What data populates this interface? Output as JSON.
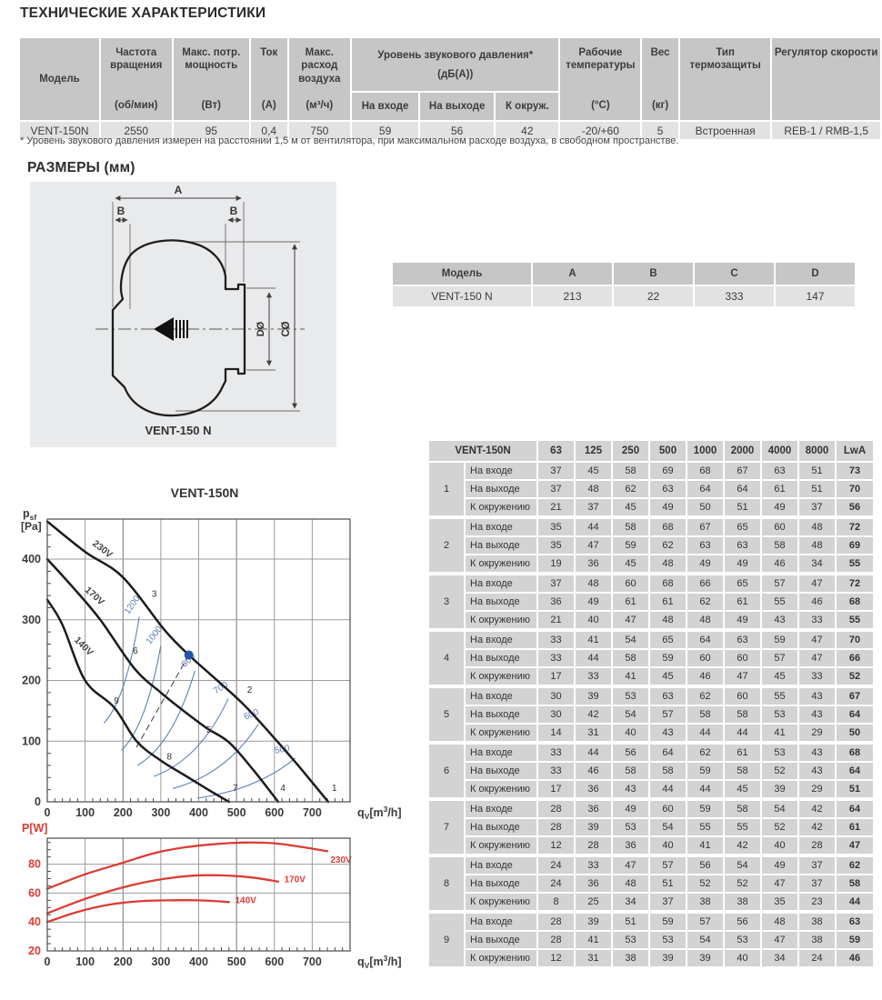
{
  "page": {
    "title": "ТЕХНИЧЕСКИЕ ХАРАКТЕРИСТИКИ",
    "dimensions_heading": "РАЗМЕРЫ (мм)",
    "footnote": "* Уровень звукового давления измерен на расстоянии 1,5 м от вентилятора, при максимальном расходе воздуха, в свободном пространстве."
  },
  "spec_table": {
    "columns_left": [
      {
        "label": "Модель",
        "unit": ""
      },
      {
        "label": "Частота вращения",
        "unit": "(об/мин)"
      },
      {
        "label": "Макс. потр. мощность",
        "unit": "(Вт)"
      },
      {
        "label": "Ток",
        "unit": "(А)"
      },
      {
        "label": "Макс. расход воздуха",
        "unit": "(м³/ч)"
      }
    ],
    "sound_group": {
      "line1": "Уровень звукового давления*",
      "line2": "(дБ(А))",
      "subcols": [
        "На входе",
        "На выходе",
        "К окруж."
      ]
    },
    "columns_right": [
      {
        "label": "Рабочие температуры",
        "unit": "(°C)"
      },
      {
        "label": "Вес",
        "unit": "(кг)"
      },
      {
        "label": "Тип термозащиты",
        "unit": ""
      },
      {
        "label": "Регулятор скорости",
        "unit": ""
      }
    ],
    "values": [
      "VENT-150N",
      "2550",
      "95",
      "0,4",
      "750",
      "59",
      "56",
      "42",
      "-20/+60",
      "5",
      "Встроенная",
      "REB-1 / RMB-1,5"
    ]
  },
  "dim_drawing": {
    "labels": {
      "A": "A",
      "B": "B",
      "D": "DØ",
      "C": "CØ"
    },
    "caption": "VENT-150 N"
  },
  "dim_table": {
    "headers": [
      "Модель",
      "A",
      "B",
      "C",
      "D"
    ],
    "row": [
      "VENT-150 N",
      "213",
      "22",
      "333",
      "147"
    ]
  },
  "sound_table": {
    "model": "VENT-150N",
    "freq_headers": [
      "63",
      "125",
      "250",
      "500",
      "1000",
      "2000",
      "4000",
      "8000",
      "LwA"
    ],
    "row_labels": [
      "На входе",
      "На выходе",
      "К окружению"
    ],
    "groups": [
      {
        "n": "1",
        "rows": [
          [
            37,
            45,
            58,
            69,
            68,
            67,
            63,
            51,
            73
          ],
          [
            37,
            48,
            62,
            63,
            64,
            64,
            61,
            51,
            70
          ],
          [
            21,
            37,
            45,
            49,
            50,
            51,
            49,
            37,
            56
          ]
        ]
      },
      {
        "n": "2",
        "rows": [
          [
            35,
            44,
            58,
            68,
            67,
            65,
            60,
            48,
            72
          ],
          [
            35,
            47,
            59,
            62,
            63,
            63,
            58,
            48,
            69
          ],
          [
            19,
            36,
            45,
            48,
            49,
            49,
            46,
            34,
            55
          ]
        ]
      },
      {
        "n": "3",
        "rows": [
          [
            37,
            48,
            60,
            68,
            66,
            65,
            57,
            47,
            72
          ],
          [
            36,
            49,
            61,
            61,
            62,
            61,
            55,
            46,
            68
          ],
          [
            21,
            40,
            47,
            48,
            48,
            49,
            43,
            33,
            55
          ]
        ]
      },
      {
        "n": "4",
        "rows": [
          [
            33,
            41,
            54,
            65,
            64,
            63,
            59,
            47,
            70
          ],
          [
            33,
            44,
            58,
            59,
            60,
            60,
            57,
            47,
            66
          ],
          [
            17,
            33,
            41,
            45,
            46,
            47,
            45,
            33,
            52
          ]
        ]
      },
      {
        "n": "5",
        "rows": [
          [
            30,
            39,
            53,
            63,
            62,
            60,
            55,
            43,
            67
          ],
          [
            30,
            42,
            54,
            57,
            58,
            58,
            53,
            43,
            64
          ],
          [
            14,
            31,
            40,
            43,
            44,
            44,
            41,
            29,
            50
          ]
        ]
      },
      {
        "n": "6",
        "rows": [
          [
            33,
            44,
            56,
            64,
            62,
            61,
            53,
            43,
            68
          ],
          [
            33,
            46,
            58,
            58,
            59,
            58,
            52,
            43,
            64
          ],
          [
            17,
            36,
            43,
            44,
            44,
            45,
            39,
            29,
            51
          ]
        ]
      },
      {
        "n": "7",
        "rows": [
          [
            28,
            36,
            49,
            60,
            59,
            58,
            54,
            42,
            64
          ],
          [
            28,
            39,
            53,
            54,
            55,
            55,
            52,
            42,
            61
          ],
          [
            12,
            28,
            36,
            40,
            41,
            42,
            40,
            28,
            47
          ]
        ]
      },
      {
        "n": "8",
        "rows": [
          [
            24,
            33,
            47,
            57,
            56,
            54,
            49,
            37,
            62
          ],
          [
            24,
            36,
            48,
            51,
            52,
            52,
            47,
            37,
            58
          ],
          [
            8,
            25,
            34,
            37,
            38,
            38,
            35,
            23,
            44
          ]
        ]
      },
      {
        "n": "9",
        "rows": [
          [
            28,
            39,
            51,
            59,
            57,
            56,
            48,
            38,
            63
          ],
          [
            28,
            41,
            53,
            53,
            54,
            53,
            47,
            38,
            59
          ],
          [
            12,
            31,
            38,
            39,
            39,
            40,
            34,
            24,
            46
          ]
        ]
      }
    ]
  },
  "chart_data": [
    {
      "id": "pressure",
      "type": "line",
      "title": "VENT-150N",
      "ylabel": {
        "main": "p",
        "sub": "sf",
        "unit": "[Pa]"
      },
      "xlabel": {
        "pre": "q",
        "sub": "V",
        "mid": "[m",
        "sup": "3",
        "post": "/h]"
      },
      "xlim": [
        0,
        800
      ],
      "ylim": [
        0,
        466
      ],
      "xticks": [
        0,
        100,
        200,
        300,
        400,
        500,
        600,
        700
      ],
      "yticks": [
        0,
        100,
        200,
        300,
        400
      ],
      "series": [
        {
          "name": "230V",
          "points": [
            [
              0,
              462
            ],
            [
              100,
              412
            ],
            [
              200,
              370
            ],
            [
              310,
              283
            ],
            [
              374,
              242
            ],
            [
              440,
              205
            ],
            [
              516,
              162
            ],
            [
              590,
              112
            ],
            [
              660,
              62
            ],
            [
              742,
              0
            ]
          ],
          "label": {
            "x": 118,
            "y": 424,
            "rot": 38
          }
        },
        {
          "name": "170V",
          "points": [
            [
              0,
              400
            ],
            [
              70,
              352
            ],
            [
              140,
              300
            ],
            [
              230,
              220
            ],
            [
              300,
              180
            ],
            [
              360,
              150
            ],
            [
              420,
              122
            ],
            [
              480,
              98
            ],
            [
              545,
              52
            ],
            [
              610,
              0
            ]
          ],
          "label": {
            "x": 98,
            "y": 348,
            "rot": 42
          }
        },
        {
          "name": "140V",
          "points": [
            [
              0,
              333
            ],
            [
              40,
              292
            ],
            [
              100,
              200
            ],
            [
              176,
              156
            ],
            [
              236,
              100
            ],
            [
              300,
              68
            ],
            [
              360,
              45
            ],
            [
              420,
              22
            ],
            [
              480,
              0
            ]
          ],
          "label": {
            "x": 70,
            "y": 266,
            "rot": 45
          }
        }
      ],
      "rpm_curves": [
        {
          "name": "1200",
          "from": [
            150,
            130
          ],
          "to": [
            243,
            305
          ],
          "label": {
            "x": 230,
            "y": 322,
            "rot": -55
          }
        },
        {
          "name": "1000",
          "from": [
            196,
            85
          ],
          "to": [
            300,
            257
          ],
          "label": {
            "x": 288,
            "y": 272,
            "rot": -52
          }
        },
        {
          "name": "800",
          "from": [
            238,
            60
          ],
          "to": [
            390,
            216
          ],
          "label": {
            "x": 378,
            "y": 230,
            "rot": -45
          }
        },
        {
          "name": "700",
          "from": [
            282,
            42
          ],
          "to": [
            478,
            170
          ],
          "label": {
            "x": 462,
            "y": 184,
            "rot": -32
          }
        },
        {
          "name": "600",
          "from": [
            332,
            22
          ],
          "to": [
            558,
            128
          ],
          "label": {
            "x": 542,
            "y": 140,
            "rot": -24
          }
        },
        {
          "name": "500",
          "from": [
            396,
            6
          ],
          "to": [
            655,
            72
          ],
          "label": {
            "x": 622,
            "y": 82,
            "rot": -12
          }
        }
      ],
      "op_labels": [
        {
          "t": "1",
          "x": 752,
          "y": 18
        },
        {
          "t": "2",
          "x": 528,
          "y": 180
        },
        {
          "t": "3",
          "x": 276,
          "y": 338
        },
        {
          "t": "4",
          "x": 616,
          "y": 18
        },
        {
          "t": "5",
          "x": 420,
          "y": 114
        },
        {
          "t": "6",
          "x": 226,
          "y": 244
        },
        {
          "t": "7",
          "x": 490,
          "y": 18
        },
        {
          "t": "8",
          "x": 316,
          "y": 70
        },
        {
          "t": "9",
          "x": 176,
          "y": 162
        }
      ],
      "op_point": [
        374,
        242
      ],
      "dashed": [
        [
          374,
          242
        ],
        [
          234,
          88
        ]
      ]
    },
    {
      "id": "power",
      "type": "line",
      "title": "",
      "ylabel": {
        "label": "P[W]"
      },
      "xlabel": {
        "pre": "q",
        "sub": "V",
        "mid": "[m",
        "sup": "3",
        "post": "/h]"
      },
      "xlim": [
        0,
        800
      ],
      "ylim": [
        20,
        98
      ],
      "xticks": [
        0,
        100,
        200,
        300,
        400,
        500,
        600,
        700
      ],
      "yticks": [
        20,
        40,
        60,
        80
      ],
      "series": [
        {
          "name": "230V",
          "points": [
            [
              0,
              63
            ],
            [
              100,
              73
            ],
            [
              200,
              81
            ],
            [
              280,
              87.5
            ],
            [
              360,
              91.5
            ],
            [
              440,
              93.8
            ],
            [
              520,
              95
            ],
            [
              600,
              94.5
            ],
            [
              670,
              92
            ],
            [
              740,
              89
            ]
          ],
          "label": {
            "x": 748,
            "y": 81
          }
        },
        {
          "name": "170V",
          "points": [
            [
              0,
              46
            ],
            [
              100,
              56
            ],
            [
              200,
              64
            ],
            [
              300,
              69.5
            ],
            [
              380,
              72
            ],
            [
              460,
              72.3
            ],
            [
              540,
              70.8
            ],
            [
              610,
              68
            ]
          ],
          "label": {
            "x": 626,
            "y": 67.5
          }
        },
        {
          "name": "140V",
          "points": [
            [
              0,
              40
            ],
            [
              80,
              47
            ],
            [
              160,
              51.8
            ],
            [
              240,
              54.3
            ],
            [
              320,
              55
            ],
            [
              400,
              55
            ],
            [
              480,
              53.8
            ]
          ],
          "label": {
            "x": 496,
            "y": 53
          }
        }
      ]
    }
  ],
  "colors": {
    "header_gray": "#c6c6c6",
    "row_gray": "#e2e2e2",
    "cell_gray": "#d3d3d3",
    "panel_gray": "#e9eaec",
    "red": "#dc3c34",
    "blue": "#5d7fc0",
    "dot_blue": "#2256a5",
    "curve_black": "#1c1c1c",
    "grid": "#9b9b9b",
    "grid_dark": "#757575",
    "axis": "#4a4a4a",
    "text": "#3a3a3a"
  }
}
